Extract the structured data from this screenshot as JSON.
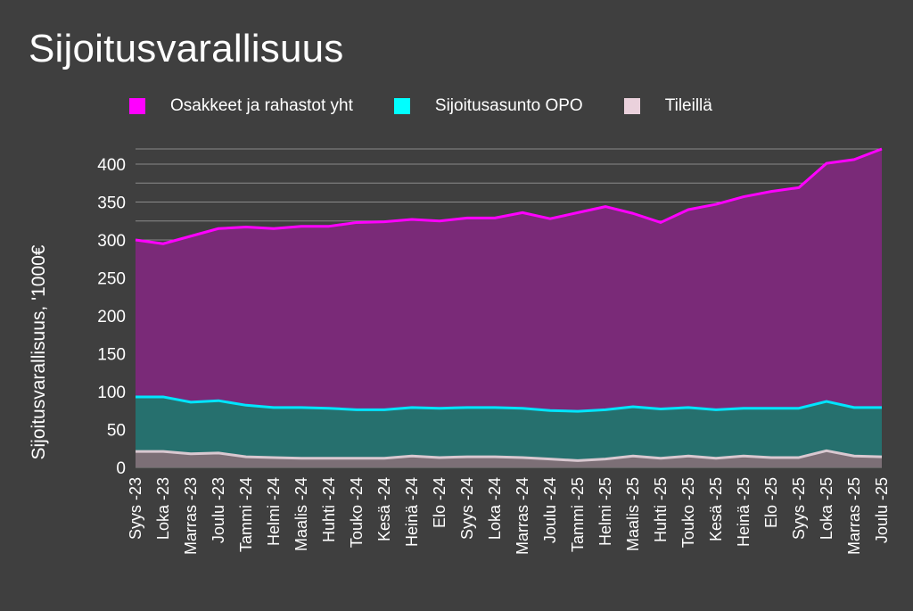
{
  "title": "Sijoitusvarallisuus",
  "chart_data": {
    "type": "area",
    "stacked": true,
    "title": "Sijoitusvarallisuus",
    "xlabel": "",
    "ylabel": "Sijoitusvarallisuus, '1000€",
    "ylim": [
      0,
      420
    ],
    "yticks": [
      0,
      50,
      100,
      150,
      200,
      250,
      300,
      350,
      400
    ],
    "grid": true,
    "legend_position": "top",
    "categories": [
      "Syys -23",
      "Loka -23",
      "Marras -23",
      "Joulu -23",
      "Tammi -24",
      "Helmi -24",
      "Maalis -24",
      "Huhti -24",
      "Touko -24",
      "Kesä -24",
      "Heinä -24",
      "Elo -24",
      "Syys -24",
      "Loka -24",
      "Marras -24",
      "Joulu -24",
      "Tammi -25",
      "Helmi -25",
      "Maalis -25",
      "Huhti -25",
      "Touko -25",
      "Kesä -25",
      "Heinä -25",
      "Elo -25",
      "Syys -25",
      "Loka -25",
      "Marras -25",
      "Joulu -25"
    ],
    "series": [
      {
        "name": "Osakkeet ja rahastot yht",
        "color": "#ff00ff",
        "cumulative": [
          300,
          295,
          305,
          315,
          317,
          315,
          318,
          318,
          323,
          324,
          327,
          325,
          329,
          329,
          336,
          328,
          336,
          344,
          335,
          323,
          340,
          347,
          357,
          364,
          369,
          401,
          406,
          420
        ],
        "values": [
          207,
          202,
          219,
          226,
          235,
          236,
          240,
          240,
          247,
          248,
          248,
          246,
          250,
          249,
          258,
          253,
          262,
          268,
          255,
          246,
          261,
          271,
          279,
          286,
          291,
          314,
          327,
          341
        ]
      },
      {
        "name": "Sijoitusasunto OPO",
        "color": "#00ffff",
        "cumulative": [
          93,
          93,
          86,
          88,
          82,
          79,
          79,
          78,
          76,
          76,
          79,
          78,
          79,
          79,
          78,
          75,
          74,
          76,
          80,
          77,
          79,
          76,
          78,
          78,
          78,
          87,
          79,
          79
        ],
        "values": [
          72,
          72,
          68,
          69,
          68,
          66,
          67,
          66,
          64,
          64,
          64,
          65,
          65,
          65,
          65,
          64,
          65,
          65,
          65,
          65,
          64,
          64,
          63,
          65,
          65,
          65,
          64,
          65
        ]
      },
      {
        "name": "Tileillä",
        "color": "#ead1dc",
        "cumulative": [
          21,
          21,
          18,
          19,
          14,
          13,
          12,
          12,
          12,
          12,
          15,
          13,
          14,
          14,
          13,
          11,
          9,
          11,
          15,
          12,
          15,
          12,
          15,
          13,
          13,
          22,
          15,
          14
        ],
        "values": [
          21,
          21,
          18,
          19,
          14,
          13,
          12,
          12,
          12,
          12,
          15,
          13,
          14,
          14,
          13,
          11,
          9,
          11,
          15,
          12,
          15,
          12,
          15,
          13,
          13,
          22,
          15,
          14
        ]
      }
    ]
  }
}
